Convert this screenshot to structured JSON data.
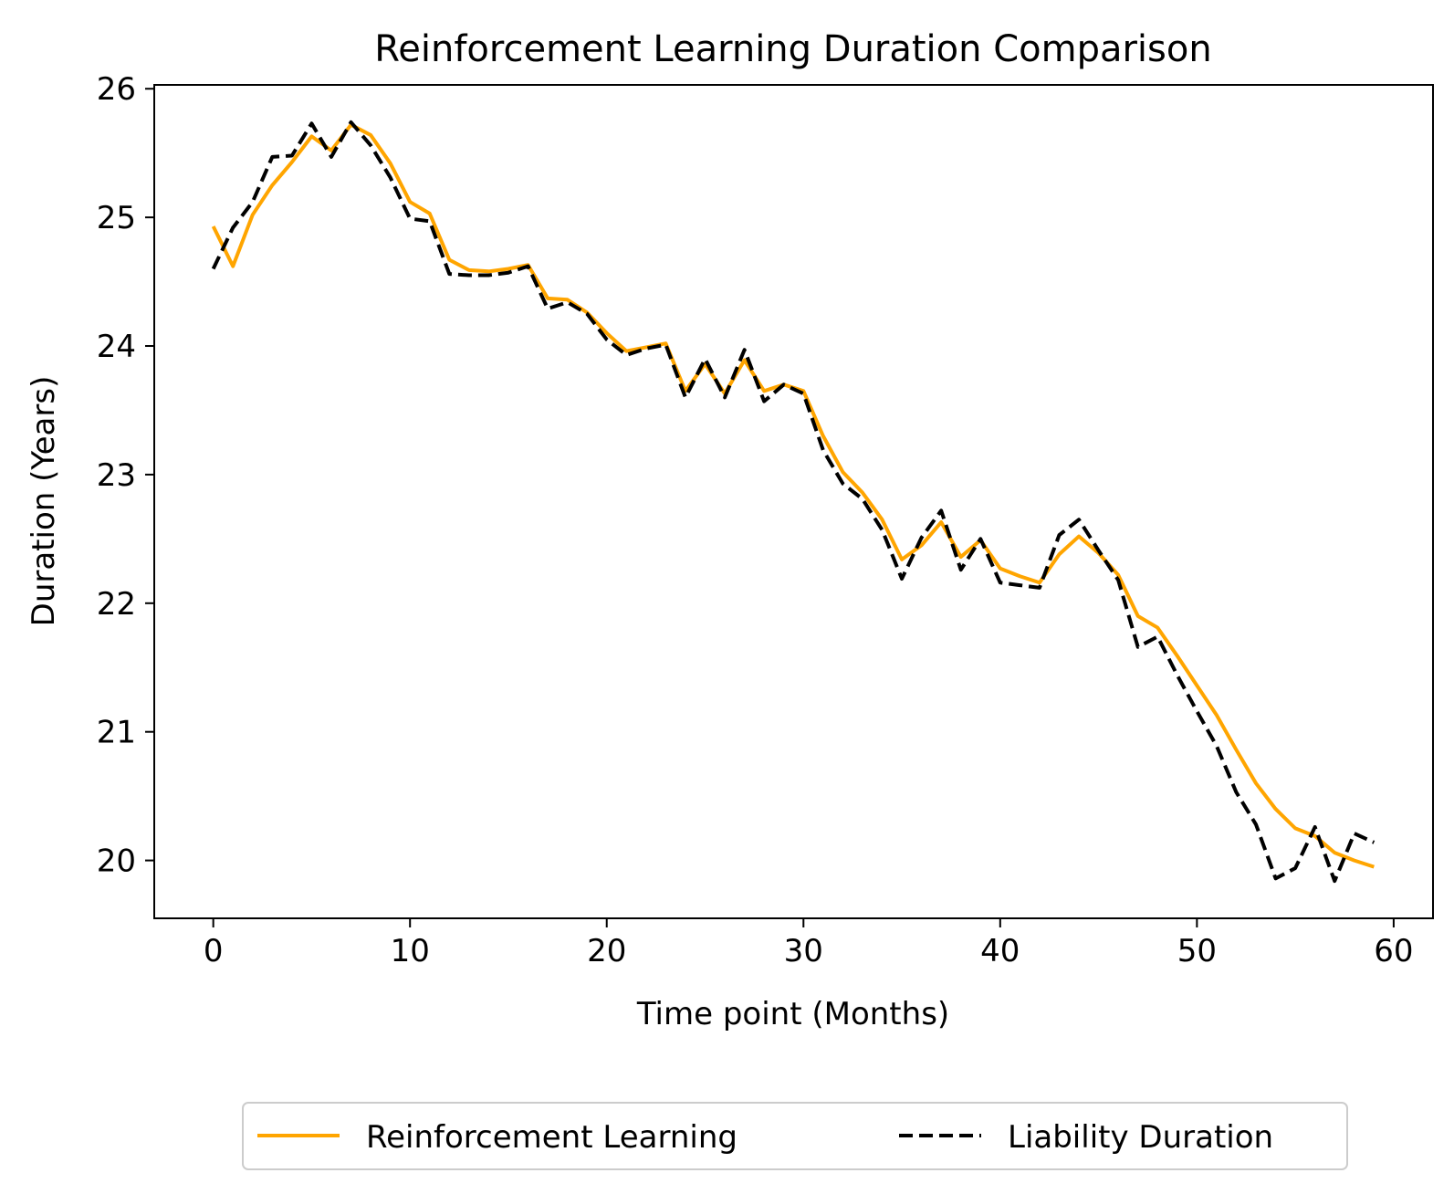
{
  "chart_data": {
    "type": "line",
    "title": "Reinforcement Learning Duration Comparison",
    "xlabel": "Time point (Months)",
    "ylabel": "Duration (Years)",
    "xlim": [
      -3,
      62
    ],
    "ylim": [
      19.55,
      26.03
    ],
    "x_ticks": [
      0,
      10,
      20,
      30,
      40,
      50,
      60
    ],
    "y_ticks": [
      20,
      21,
      22,
      23,
      24,
      25,
      26
    ],
    "grid": false,
    "legend_placement": "bottom-center, below axes, 2 columns",
    "x": [
      0,
      1,
      2,
      3,
      4,
      5,
      6,
      7,
      8,
      9,
      10,
      11,
      12,
      13,
      14,
      15,
      16,
      17,
      18,
      19,
      20,
      21,
      22,
      23,
      24,
      25,
      26,
      27,
      28,
      29,
      30,
      31,
      32,
      33,
      34,
      35,
      36,
      37,
      38,
      39,
      40,
      41,
      42,
      43,
      44,
      45,
      46,
      47,
      48,
      49,
      50,
      51,
      52,
      53,
      54,
      55,
      56,
      57,
      58,
      59
    ],
    "series": [
      {
        "name": "Reinforcement Learning",
        "color": "#ffa500",
        "style": "solid",
        "values": [
          24.93,
          24.62,
          25.02,
          25.25,
          25.43,
          25.63,
          25.52,
          25.72,
          25.64,
          25.42,
          25.12,
          25.03,
          24.67,
          24.59,
          24.58,
          24.6,
          24.63,
          24.37,
          24.36,
          24.26,
          24.1,
          23.96,
          23.99,
          24.02,
          23.65,
          23.86,
          23.63,
          23.89,
          23.65,
          23.7,
          23.65,
          23.3,
          23.02,
          22.86,
          22.65,
          22.34,
          22.45,
          22.63,
          22.36,
          22.49,
          22.27,
          22.21,
          22.16,
          22.38,
          22.52,
          22.39,
          22.22,
          21.9,
          21.81,
          21.59,
          21.36,
          21.13,
          20.86,
          20.6,
          20.4,
          20.25,
          20.19,
          20.06,
          20.0,
          19.95
        ]
      },
      {
        "name": "Liability Duration",
        "color": "#000000",
        "style": "dashed",
        "values": [
          24.6,
          24.92,
          25.12,
          25.47,
          25.48,
          25.73,
          25.47,
          25.74,
          25.56,
          25.31,
          24.99,
          24.97,
          24.56,
          24.55,
          24.55,
          24.57,
          24.62,
          24.29,
          24.34,
          24.25,
          24.05,
          23.93,
          23.98,
          24.01,
          23.6,
          23.9,
          23.6,
          23.97,
          23.57,
          23.7,
          23.63,
          23.19,
          22.93,
          22.81,
          22.57,
          22.19,
          22.51,
          22.72,
          22.26,
          22.5,
          22.16,
          22.14,
          22.12,
          22.53,
          22.65,
          22.41,
          22.18,
          21.66,
          21.74,
          21.44,
          21.16,
          20.89,
          20.53,
          20.28,
          19.86,
          19.94,
          20.26,
          19.84,
          20.21,
          20.14
        ]
      }
    ]
  }
}
